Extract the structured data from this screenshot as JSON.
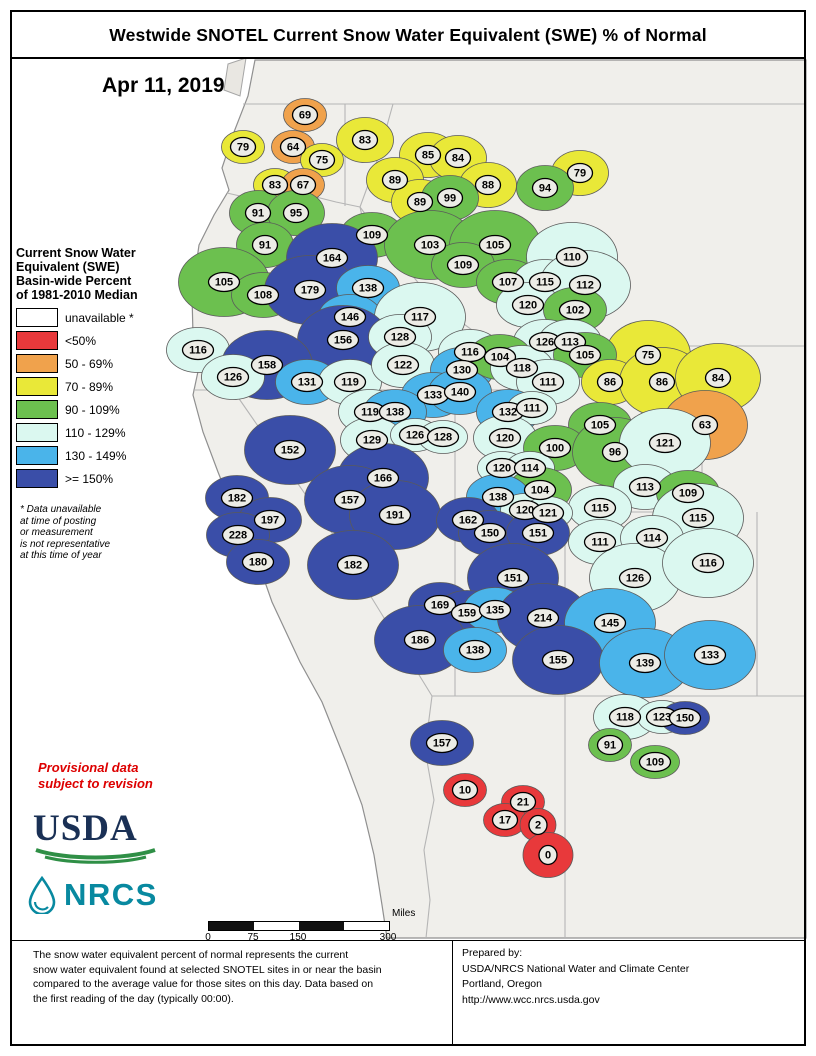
{
  "page": {
    "title": "Westwide SNOTEL Current Snow Water Equivalent (SWE) % of Normal",
    "date": "Apr 11, 2019"
  },
  "legend": {
    "heading_lines": [
      "Current Snow Water",
      "Equivalent (SWE)",
      "Basin-wide Percent",
      "of 1981-2010 Median"
    ],
    "items": [
      {
        "label": "unavailable *",
        "color": "#ffffff"
      },
      {
        "label": "<50%",
        "color": "#e8393b"
      },
      {
        "label": "50 - 69%",
        "color": "#f0a24c"
      },
      {
        "label": "70 - 89%",
        "color": "#e9e838"
      },
      {
        "label": "90 - 109%",
        "color": "#6cc04f"
      },
      {
        "label": "110 - 129%",
        "color": "#dbf8f0"
      },
      {
        "label": "130 - 149%",
        "color": "#4ab4ea"
      },
      {
        "label": ">= 150%",
        "color": "#3a4ea8"
      }
    ],
    "footnote_lines": [
      "* Data unavailable",
      "at time of posting",
      "or measurement",
      "is not representative",
      "at this time of year"
    ]
  },
  "provisional_lines": [
    "Provisional data",
    "subject to revision"
  ],
  "logos": {
    "usda": "USDA",
    "nrcs": "NRCS"
  },
  "scalebar": {
    "labels": [
      "0",
      "75",
      "150",
      "300"
    ],
    "unit": "Miles"
  },
  "footer": {
    "note_lines": [
      "The snow water equivalent percent of normal represents the current",
      "snow water equivalent found at selected SNOTEL sites in or near the basin",
      "compared to the average value for those sites on this day. Data based on",
      "the first reading of the day (typically 00:00)."
    ],
    "prepared_lines": [
      "Prepared by:",
      "USDA/NRCS National Water and Climate Center",
      "Portland, Oregon",
      "http://www.wcc.nrcs.usda.gov"
    ]
  },
  "map": {
    "basins_format": [
      "value_percent_of_median",
      "x_px",
      "y_px",
      "size_tier"
    ],
    "basins": [
      [
        69,
        305,
        115,
        0
      ],
      [
        83,
        365,
        140,
        1
      ],
      [
        79,
        243,
        147,
        0
      ],
      [
        64,
        293,
        147,
        0
      ],
      [
        75,
        322,
        160,
        0
      ],
      [
        85,
        428,
        155,
        1
      ],
      [
        84,
        458,
        158,
        1
      ],
      [
        79,
        580,
        173,
        1
      ],
      [
        83,
        275,
        185,
        0
      ],
      [
        67,
        303,
        185,
        0
      ],
      [
        89,
        395,
        180,
        1
      ],
      [
        88,
        488,
        185,
        1
      ],
      [
        94,
        545,
        188,
        1
      ],
      [
        89,
        420,
        202,
        1
      ],
      [
        99,
        450,
        198,
        1
      ],
      [
        91,
        258,
        213,
        1
      ],
      [
        95,
        296,
        213,
        1
      ],
      [
        109,
        372,
        235,
        1
      ],
      [
        103,
        430,
        245,
        2
      ],
      [
        105,
        495,
        245,
        2
      ],
      [
        110,
        572,
        257,
        2
      ],
      [
        91,
        265,
        245,
        1
      ],
      [
        164,
        332,
        258,
        2
      ],
      [
        105,
        224,
        282,
        2
      ],
      [
        108,
        263,
        295,
        1
      ],
      [
        179,
        310,
        290,
        2
      ],
      [
        138,
        368,
        288,
        1
      ],
      [
        109,
        463,
        265,
        1
      ],
      [
        107,
        508,
        282,
        1
      ],
      [
        115,
        545,
        282,
        1
      ],
      [
        112,
        585,
        285,
        2
      ],
      [
        146,
        350,
        317,
        1
      ],
      [
        117,
        420,
        317,
        2
      ],
      [
        120,
        528,
        305,
        1
      ],
      [
        102,
        575,
        310,
        1
      ],
      [
        156,
        343,
        340,
        2
      ],
      [
        128,
        400,
        337,
        1
      ],
      [
        116,
        470,
        352,
        1
      ],
      [
        126,
        545,
        342,
        1
      ],
      [
        113,
        570,
        342,
        1
      ],
      [
        75,
        648,
        355,
        2
      ],
      [
        116,
        198,
        350,
        1
      ],
      [
        158,
        267,
        365,
        2
      ],
      [
        131,
        307,
        382,
        1
      ],
      [
        119,
        350,
        382,
        1
      ],
      [
        122,
        403,
        365,
        1
      ],
      [
        130,
        462,
        370,
        1
      ],
      [
        104,
        500,
        357,
        1
      ],
      [
        118,
        522,
        368,
        1
      ],
      [
        105,
        585,
        355,
        1
      ],
      [
        86,
        610,
        382,
        1
      ],
      [
        86,
        662,
        382,
        2
      ],
      [
        84,
        718,
        378,
        2
      ],
      [
        126,
        233,
        377,
        1
      ],
      [
        133,
        433,
        395,
        1
      ],
      [
        140,
        460,
        392,
        1
      ],
      [
        111,
        548,
        382,
        1
      ],
      [
        119,
        370,
        412,
        1
      ],
      [
        138,
        395,
        412,
        1
      ],
      [
        132,
        508,
        412,
        1
      ],
      [
        111,
        532,
        408,
        0
      ],
      [
        105,
        600,
        425,
        1
      ],
      [
        63,
        705,
        425,
        2
      ],
      [
        152,
        290,
        450,
        2
      ],
      [
        129,
        372,
        440,
        1
      ],
      [
        126,
        415,
        435,
        0
      ],
      [
        128,
        443,
        437,
        0
      ],
      [
        120,
        505,
        438,
        1
      ],
      [
        100,
        555,
        448,
        1
      ],
      [
        96,
        615,
        452,
        2
      ],
      [
        121,
        665,
        443,
        2
      ],
      [
        166,
        383,
        478,
        2
      ],
      [
        120,
        502,
        468,
        0
      ],
      [
        114,
        530,
        468,
        0
      ],
      [
        104,
        540,
        490,
        1
      ],
      [
        113,
        645,
        487,
        1
      ],
      [
        109,
        688,
        493,
        1
      ],
      [
        115,
        600,
        508,
        1
      ],
      [
        115,
        698,
        518,
        2
      ],
      [
        182,
        237,
        498,
        1
      ],
      [
        197,
        270,
        520,
        1
      ],
      [
        157,
        350,
        500,
        2
      ],
      [
        191,
        395,
        515,
        2
      ],
      [
        138,
        498,
        497,
        1
      ],
      [
        120,
        525,
        510,
        0
      ],
      [
        121,
        548,
        513,
        0
      ],
      [
        162,
        468,
        520,
        1
      ],
      [
        150,
        490,
        533,
        1
      ],
      [
        151,
        538,
        533,
        1
      ],
      [
        111,
        600,
        542,
        1
      ],
      [
        114,
        652,
        538,
        1
      ],
      [
        228,
        238,
        535,
        1
      ],
      [
        180,
        258,
        562,
        1
      ],
      [
        182,
        353,
        565,
        2
      ],
      [
        126,
        635,
        578,
        2
      ],
      [
        116,
        708,
        563,
        2
      ],
      [
        151,
        513,
        578,
        2
      ],
      [
        169,
        440,
        605,
        1
      ],
      [
        159,
        467,
        613,
        1
      ],
      [
        135,
        495,
        610,
        1
      ],
      [
        214,
        543,
        618,
        2
      ],
      [
        145,
        610,
        623,
        2
      ],
      [
        186,
        420,
        640,
        2
      ],
      [
        138,
        475,
        650,
        1
      ],
      [
        155,
        558,
        660,
        2
      ],
      [
        139,
        645,
        663,
        2
      ],
      [
        133,
        710,
        655,
        2
      ],
      [
        118,
        625,
        717,
        1
      ],
      [
        123,
        662,
        717,
        0
      ],
      [
        150,
        685,
        718,
        0
      ],
      [
        91,
        610,
        745,
        0
      ],
      [
        157,
        442,
        743,
        1
      ],
      [
        109,
        655,
        762,
        0
      ],
      [
        10,
        465,
        790,
        0
      ],
      [
        21,
        523,
        802,
        0
      ],
      [
        17,
        505,
        820,
        0
      ],
      [
        2,
        538,
        825,
        0
      ],
      [
        0,
        548,
        855,
        1
      ]
    ]
  }
}
